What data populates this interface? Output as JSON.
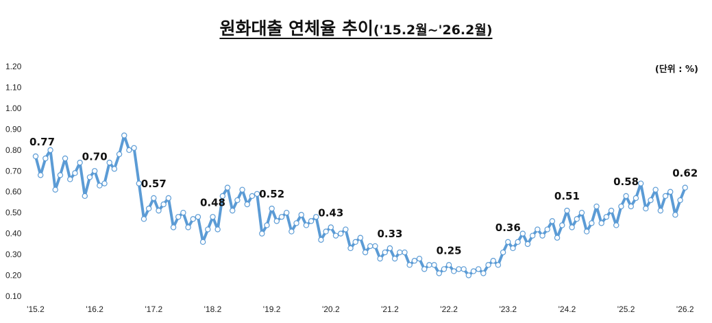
{
  "title": {
    "main": "원화대출 연체율 추이",
    "sub": "('15.2월~'26.2월)"
  },
  "unit_label": "(단위 : %)",
  "colors": {
    "line": "#5B9BD5",
    "marker_fill": "#ffffff",
    "marker_stroke": "#5B9BD5"
  },
  "chart_data": {
    "type": "line",
    "title": "원화대출 연체율 추이",
    "xlabel": "",
    "ylabel": "",
    "ylim": [
      0.1,
      1.2
    ],
    "yticks": [
      "0.10",
      "0.20",
      "0.30",
      "0.40",
      "0.50",
      "0.60",
      "0.70",
      "0.80",
      "0.90",
      "1.00",
      "1.10",
      "1.20"
    ],
    "xticks": [
      "'15.2",
      "'16.2",
      "'17.2",
      "'18.2",
      "'19.2",
      "'20.2",
      "'21.2",
      "'22.2",
      "'23.2",
      "'24.2",
      "'25.2",
      "'26.2"
    ],
    "grid": false,
    "series": [
      {
        "name": "",
        "start": "'15.2",
        "values": [
          0.77,
          0.68,
          0.76,
          0.8,
          0.61,
          0.68,
          0.76,
          0.66,
          0.69,
          0.74,
          0.58,
          0.67,
          0.7,
          0.63,
          0.64,
          0.74,
          0.71,
          0.78,
          0.87,
          0.8,
          0.81,
          0.64,
          0.47,
          0.52,
          0.57,
          0.51,
          0.54,
          0.57,
          0.43,
          0.48,
          0.5,
          0.43,
          0.47,
          0.48,
          0.36,
          0.42,
          0.48,
          0.42,
          0.58,
          0.62,
          0.51,
          0.56,
          0.61,
          0.54,
          0.58,
          0.59,
          0.4,
          0.44,
          0.52,
          0.46,
          0.48,
          0.5,
          0.41,
          0.45,
          0.49,
          0.44,
          0.46,
          0.48,
          0.37,
          0.41,
          0.43,
          0.39,
          0.4,
          0.42,
          0.33,
          0.36,
          0.38,
          0.31,
          0.34,
          0.34,
          0.28,
          0.31,
          0.33,
          0.28,
          0.31,
          0.31,
          0.25,
          0.27,
          0.28,
          0.23,
          0.25,
          0.25,
          0.21,
          0.23,
          0.25,
          0.22,
          0.23,
          0.23,
          0.2,
          0.22,
          0.23,
          0.21,
          0.25,
          0.27,
          0.25,
          0.31,
          0.36,
          0.33,
          0.36,
          0.4,
          0.35,
          0.39,
          0.42,
          0.39,
          0.42,
          0.46,
          0.38,
          0.44,
          0.51,
          0.43,
          0.47,
          0.5,
          0.41,
          0.45,
          0.53,
          0.45,
          0.48,
          0.51,
          0.44,
          0.53,
          0.58,
          0.53,
          0.57,
          0.64,
          0.52,
          0.56,
          0.61,
          0.51,
          0.58,
          0.6,
          0.49,
          0.56,
          0.62
        ]
      }
    ],
    "annotations": [
      {
        "month_index": 0,
        "text": "0.77"
      },
      {
        "month_index": 12,
        "text": "0.70"
      },
      {
        "month_index": 24,
        "text": "0.57"
      },
      {
        "month_index": 36,
        "text": "0.48"
      },
      {
        "month_index": 48,
        "text": "0.52"
      },
      {
        "month_index": 60,
        "text": "0.43"
      },
      {
        "month_index": 72,
        "text": "0.33"
      },
      {
        "month_index": 84,
        "text": "0.25"
      },
      {
        "month_index": 96,
        "text": "0.36"
      },
      {
        "month_index": 108,
        "text": "0.51"
      },
      {
        "month_index": 120,
        "text": "0.58"
      },
      {
        "month_index": 132,
        "text": "0.62"
      }
    ]
  }
}
